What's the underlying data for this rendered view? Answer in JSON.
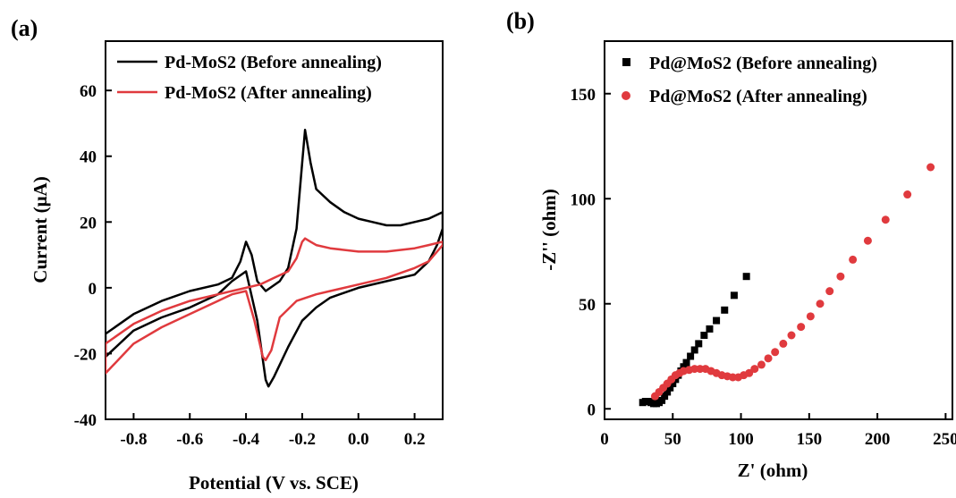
{
  "chart_data": [
    {
      "panel": "(a)",
      "type": "line",
      "xlabel": "Potential (V vs. SCE)",
      "ylabel": "Current (μA)",
      "xlim": [
        -0.9,
        0.3
      ],
      "ylim": [
        -40,
        75
      ],
      "xticks": [
        -0.8,
        -0.6,
        -0.4,
        -0.2,
        0.0,
        0.2
      ],
      "xtick_labels": [
        "-0.8",
        "-0.6",
        "-0.4",
        "-0.2",
        "0.0",
        "0.2"
      ],
      "yticks": [
        -40,
        -20,
        0,
        20,
        40,
        60
      ],
      "ytick_labels": [
        "-40",
        "-20",
        "0",
        "20",
        "40",
        "60"
      ],
      "grid": false,
      "legend_position": "top-right",
      "series": [
        {
          "name": "Pd-MoS2 (Before annealing)",
          "color": "#000000",
          "upper": [
            [
              -0.9,
              -14
            ],
            [
              -0.8,
              -8
            ],
            [
              -0.7,
              -4
            ],
            [
              -0.6,
              -1
            ],
            [
              -0.5,
              1
            ],
            [
              -0.45,
              3
            ],
            [
              -0.42,
              8
            ],
            [
              -0.4,
              14
            ],
            [
              -0.38,
              10
            ],
            [
              -0.36,
              2
            ],
            [
              -0.33,
              -1
            ],
            [
              -0.28,
              2
            ],
            [
              -0.25,
              6
            ],
            [
              -0.22,
              18
            ],
            [
              -0.2,
              38
            ],
            [
              -0.19,
              48
            ],
            [
              -0.17,
              38
            ],
            [
              -0.15,
              30
            ],
            [
              -0.1,
              26
            ],
            [
              -0.05,
              23
            ],
            [
              0.0,
              21
            ],
            [
              0.05,
              20
            ],
            [
              0.1,
              19
            ],
            [
              0.15,
              19
            ],
            [
              0.2,
              20
            ],
            [
              0.25,
              21
            ],
            [
              0.3,
              23
            ]
          ],
          "lower": [
            [
              -0.9,
              -21
            ],
            [
              -0.8,
              -13
            ],
            [
              -0.7,
              -9
            ],
            [
              -0.6,
              -6
            ],
            [
              -0.5,
              -2
            ],
            [
              -0.45,
              2
            ],
            [
              -0.4,
              5
            ],
            [
              -0.36,
              -10
            ],
            [
              -0.33,
              -28
            ],
            [
              -0.32,
              -30
            ],
            [
              -0.3,
              -27
            ],
            [
              -0.25,
              -18
            ],
            [
              -0.2,
              -10
            ],
            [
              -0.15,
              -6
            ],
            [
              -0.1,
              -3
            ],
            [
              0.0,
              0
            ],
            [
              0.1,
              2
            ],
            [
              0.2,
              4
            ],
            [
              0.25,
              8
            ],
            [
              0.28,
              13
            ],
            [
              0.3,
              18
            ]
          ]
        },
        {
          "name": "Pd-MoS2 (After annealing)",
          "color": "#e03a3e",
          "upper": [
            [
              -0.9,
              -17
            ],
            [
              -0.8,
              -11
            ],
            [
              -0.7,
              -7
            ],
            [
              -0.6,
              -4
            ],
            [
              -0.5,
              -2
            ],
            [
              -0.45,
              -1
            ],
            [
              -0.4,
              0
            ],
            [
              -0.35,
              1
            ],
            [
              -0.3,
              3
            ],
            [
              -0.25,
              5
            ],
            [
              -0.22,
              9
            ],
            [
              -0.2,
              14
            ],
            [
              -0.19,
              15
            ],
            [
              -0.17,
              14
            ],
            [
              -0.15,
              13
            ],
            [
              -0.1,
              12
            ],
            [
              0.0,
              11
            ],
            [
              0.1,
              11
            ],
            [
              0.2,
              12
            ],
            [
              0.25,
              13
            ],
            [
              0.3,
              14
            ]
          ],
          "lower": [
            [
              -0.9,
              -26
            ],
            [
              -0.8,
              -17
            ],
            [
              -0.7,
              -12
            ],
            [
              -0.6,
              -8
            ],
            [
              -0.5,
              -4
            ],
            [
              -0.45,
              -2
            ],
            [
              -0.4,
              -1
            ],
            [
              -0.37,
              -10
            ],
            [
              -0.34,
              -21
            ],
            [
              -0.33,
              -22
            ],
            [
              -0.31,
              -19
            ],
            [
              -0.28,
              -9
            ],
            [
              -0.22,
              -4
            ],
            [
              -0.15,
              -2
            ],
            [
              -0.1,
              -1
            ],
            [
              0.0,
              1
            ],
            [
              0.1,
              3
            ],
            [
              0.2,
              6
            ],
            [
              0.25,
              8
            ],
            [
              0.3,
              13
            ]
          ]
        }
      ]
    },
    {
      "panel": "(b)",
      "type": "scatter",
      "xlabel": "Z' (ohm)",
      "ylabel": "-Z'' (ohm)",
      "xlim": [
        0,
        255
      ],
      "ylim": [
        -5,
        175
      ],
      "xticks": [
        0,
        50,
        100,
        150,
        200,
        250
      ],
      "xtick_labels": [
        "0",
        "50",
        "100",
        "150",
        "200",
        "250"
      ],
      "yticks": [
        0,
        50,
        100,
        150
      ],
      "ytick_labels": [
        "0",
        "50",
        "100",
        "150"
      ],
      "grid": false,
      "legend_position": "top-left",
      "series": [
        {
          "name": "Pd@MoS2 (Before annealing)",
          "color": "#000000",
          "marker": "square",
          "points": [
            [
              28,
              3
            ],
            [
              30,
              3.5
            ],
            [
              32,
              3.5
            ],
            [
              34,
              3
            ],
            [
              36,
              2.5
            ],
            [
              38,
              2.5
            ],
            [
              40,
              3
            ],
            [
              42,
              4
            ],
            [
              44,
              6
            ],
            [
              46,
              8
            ],
            [
              48,
              10
            ],
            [
              50,
              12
            ],
            [
              52,
              14
            ],
            [
              54,
              16
            ],
            [
              56,
              18
            ],
            [
              58,
              20
            ],
            [
              60,
              22
            ],
            [
              63,
              25
            ],
            [
              66,
              28
            ],
            [
              69,
              31
            ],
            [
              73,
              35
            ],
            [
              77,
              38
            ],
            [
              82,
              42
            ],
            [
              88,
              47
            ],
            [
              95,
              54
            ],
            [
              104,
              63
            ]
          ]
        },
        {
          "name": "Pd@MoS2 (After annealing)",
          "color": "#e03a3e",
          "marker": "circle",
          "points": [
            [
              37,
              6
            ],
            [
              40,
              8
            ],
            [
              43,
              10
            ],
            [
              46,
              12
            ],
            [
              49,
              14
            ],
            [
              52,
              16
            ],
            [
              55,
              17
            ],
            [
              58,
              18
            ],
            [
              62,
              18.5
            ],
            [
              66,
              19
            ],
            [
              70,
              19
            ],
            [
              74,
              19
            ],
            [
              78,
              18
            ],
            [
              82,
              17
            ],
            [
              86,
              16
            ],
            [
              90,
              15.5
            ],
            [
              94,
              15
            ],
            [
              98,
              15
            ],
            [
              102,
              16
            ],
            [
              106,
              17
            ],
            [
              110,
              19
            ],
            [
              115,
              21
            ],
            [
              120,
              24
            ],
            [
              125,
              27
            ],
            [
              131,
              31
            ],
            [
              137,
              35
            ],
            [
              144,
              39
            ],
            [
              151,
              44
            ],
            [
              158,
              50
            ],
            [
              165,
              56
            ],
            [
              173,
              63
            ],
            [
              182,
              71
            ],
            [
              193,
              80
            ],
            [
              206,
              90
            ],
            [
              222,
              102
            ],
            [
              239,
              115
            ]
          ]
        }
      ]
    }
  ]
}
